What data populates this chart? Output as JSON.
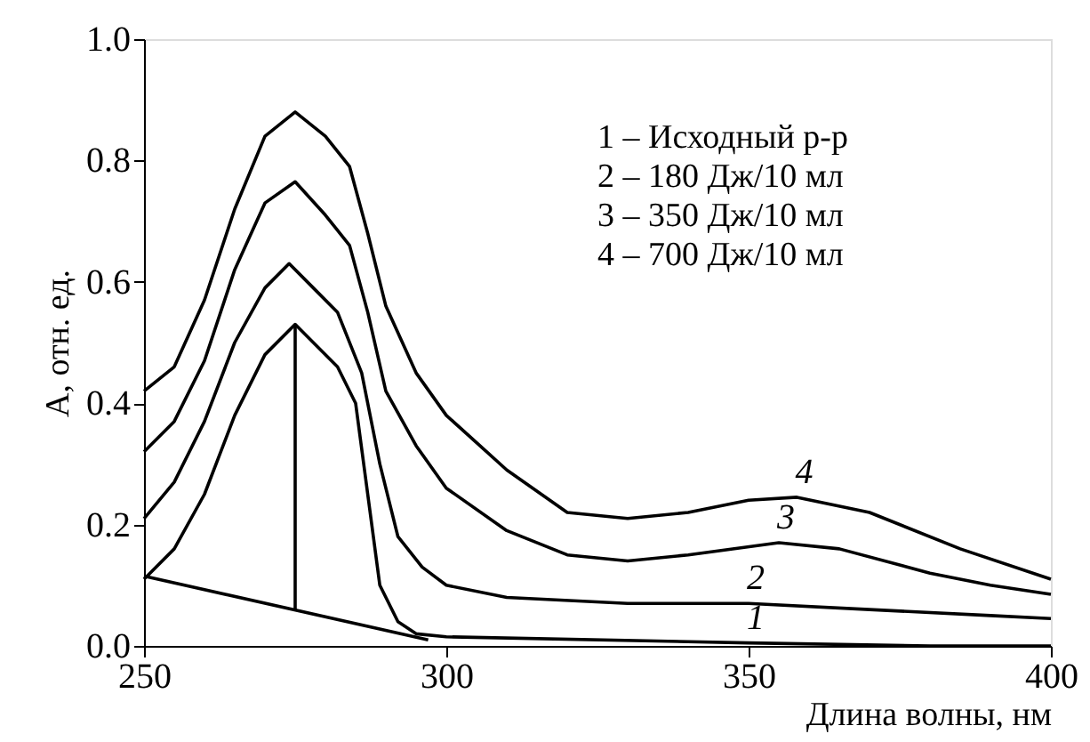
{
  "chart_data": {
    "type": "line",
    "xlabel": "Длина волны, нм",
    "ylabel": "A, отн. ед.",
    "xlim": [
      250,
      400
    ],
    "xticks": [
      250,
      300,
      350,
      400
    ],
    "ylim": [
      0,
      1.0
    ],
    "yticks": [
      {
        "value": 0,
        "label": "0.0"
      },
      0.2,
      0.4,
      0.6,
      0.8,
      {
        "value": 1.0,
        "label": "1.0"
      }
    ],
    "grid": false,
    "marker": "none",
    "line_style": "solid",
    "series": [
      {
        "name": "1",
        "color": "#000000",
        "x": [
          250,
          255,
          260,
          265,
          270,
          275,
          278,
          282,
          285,
          287,
          289,
          292,
          295,
          300,
          350,
          380,
          400
        ],
        "values": [
          0.11,
          0.16,
          0.25,
          0.38,
          0.48,
          0.53,
          0.5,
          0.46,
          0.4,
          0.25,
          0.1,
          0.04,
          0.02,
          0.015,
          0.005,
          0.0,
          0.0
        ]
      },
      {
        "name": "2",
        "color": "#000000",
        "x": [
          250,
          255,
          260,
          265,
          270,
          274,
          278,
          282,
          286,
          289,
          292,
          296,
          300,
          310,
          330,
          350,
          370,
          390,
          400
        ],
        "values": [
          0.21,
          0.27,
          0.37,
          0.5,
          0.59,
          0.63,
          0.59,
          0.55,
          0.45,
          0.3,
          0.18,
          0.13,
          0.1,
          0.08,
          0.07,
          0.07,
          0.06,
          0.05,
          0.045
        ]
      },
      {
        "name": "3",
        "color": "#000000",
        "x": [
          250,
          255,
          260,
          265,
          270,
          275,
          280,
          284,
          287,
          290,
          295,
          300,
          310,
          320,
          330,
          340,
          355,
          365,
          380,
          390,
          400
        ],
        "values": [
          0.32,
          0.37,
          0.47,
          0.62,
          0.73,
          0.765,
          0.71,
          0.66,
          0.55,
          0.42,
          0.33,
          0.26,
          0.19,
          0.15,
          0.14,
          0.15,
          0.17,
          0.16,
          0.12,
          0.1,
          0.085
        ]
      },
      {
        "name": "4",
        "color": "#000000",
        "x": [
          250,
          255,
          260,
          265,
          270,
          275,
          280,
          284,
          287,
          290,
          295,
          300,
          310,
          320,
          330,
          340,
          350,
          358,
          370,
          385,
          400
        ],
        "values": [
          0.42,
          0.46,
          0.57,
          0.72,
          0.84,
          0.88,
          0.84,
          0.79,
          0.68,
          0.56,
          0.45,
          0.38,
          0.29,
          0.22,
          0.21,
          0.22,
          0.24,
          0.245,
          0.22,
          0.16,
          0.11
        ]
      },
      {
        "color": "#000000",
        "x": [
          250,
          297
        ],
        "values": [
          0.115,
          0.01
        ]
      },
      {
        "color": "#000000",
        "x": [
          275,
          275
        ],
        "values": [
          0.06,
          0.53
        ]
      }
    ],
    "annotations": [
      "1 – Исходный р-р",
      "2 – 180 Дж/10 мл",
      "3 – 350 Дж/10 мл",
      "4 – 700 Дж/10 мл"
    ]
  }
}
